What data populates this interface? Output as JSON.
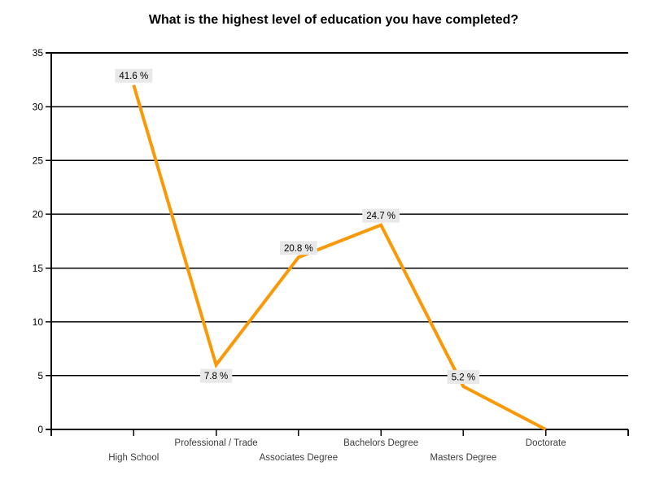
{
  "title": "What is the highest level of education you have completed?",
  "colors": {
    "background": "#FFFFFF",
    "line": "#FA9907",
    "axis": "#000000",
    "gridline": "#000000",
    "point_label_bg": "#E8E8E8",
    "point_label_text": "#000000",
    "category_label_text": "#3D3D3D",
    "ytick_label_text": "#000000",
    "title_text": "#000000"
  },
  "chart_data": {
    "type": "line",
    "title": "What is the highest level of education you have completed?",
    "categories": [
      "High School",
      "Professional / Trade",
      "Associates Degree",
      "Bachelors Degree",
      "Masters Degree",
      "Doctorate"
    ],
    "values": [
      32,
      6,
      16,
      19,
      4,
      0
    ],
    "percentages": [
      41.6,
      7.8,
      20.8,
      24.7,
      5.2,
      0.0
    ],
    "point_labels": [
      "41.6 %",
      "7.8 %",
      "20.8 %",
      "24.7 %",
      "5.2 %",
      ""
    ],
    "point_label_positions": [
      "above",
      "below",
      "above",
      "above",
      "above",
      "none"
    ],
    "ylim": [
      0,
      35
    ],
    "yticks": [
      0,
      5,
      10,
      15,
      20,
      25,
      30,
      35
    ],
    "xlabel": "",
    "ylabel": "",
    "grid": "horizontal",
    "legend": "none",
    "x_label_layout": "staggered-two-rows"
  }
}
